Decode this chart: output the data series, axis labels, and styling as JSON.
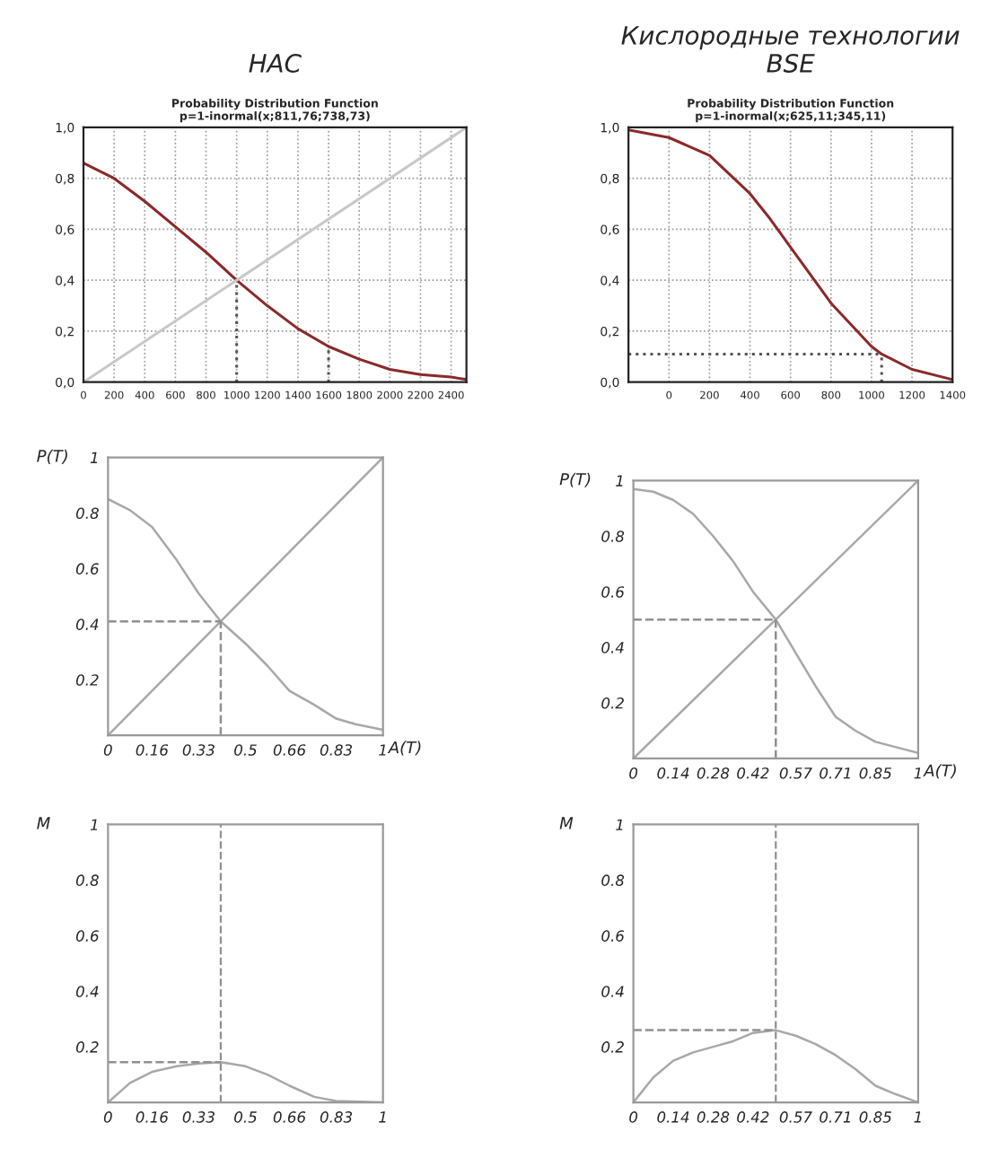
{
  "chart_data": [
    {
      "type": "line",
      "title": "HAC",
      "subtitle": "Probability Distribution Function\np=1-inormal(x;811,76;738,73)",
      "xlim": [
        0,
        2500
      ],
      "ylim": [
        0,
        1
      ],
      "xticks": [
        0,
        200,
        400,
        600,
        800,
        1000,
        1200,
        1400,
        1600,
        1800,
        2000,
        2200,
        2400
      ],
      "yticks": [
        {
          "value": 0,
          "label": "0,0"
        },
        {
          "value": 0.2,
          "label": "0,2"
        },
        {
          "value": 0.4,
          "label": "0,4"
        },
        {
          "value": 0.6,
          "label": "0,6"
        },
        {
          "value": 0.8,
          "label": "0,8"
        },
        {
          "value": 1,
          "label": "1,0"
        }
      ],
      "grid": true,
      "series": [
        {
          "color": "#8b2a2a",
          "line_style": "solid",
          "x": [
            0,
            200,
            400,
            600,
            800,
            1000,
            1200,
            1400,
            1600,
            1800,
            2000,
            2200,
            2400,
            2500
          ],
          "values": [
            0.86,
            0.8,
            0.71,
            0.61,
            0.51,
            0.4,
            0.3,
            0.21,
            0.14,
            0.09,
            0.05,
            0.03,
            0.02,
            0.01
          ]
        },
        {
          "color": "#c8c8c8",
          "line_style": "solid",
          "x": [
            0,
            2500
          ],
          "values": [
            0,
            1
          ]
        },
        {
          "color": "#555555",
          "line_style": "dotted",
          "x": [
            1000,
            1000
          ],
          "values": [
            0,
            0.4
          ]
        },
        {
          "color": "#555555",
          "line_style": "dotted",
          "x": [
            1600,
            1600
          ],
          "values": [
            0,
            0.14
          ]
        }
      ]
    },
    {
      "type": "line",
      "title": "Кислородные технологии\nBSE",
      "subtitle": "Probability Distribution Function\np=1-inormal(x;625,11;345,11)",
      "xlim": [
        -200,
        1400
      ],
      "ylim": [
        0,
        1
      ],
      "xticks": [
        0,
        200,
        400,
        600,
        800,
        1000,
        1200,
        1400
      ],
      "yticks": [
        {
          "value": 0,
          "label": "0,0"
        },
        {
          "value": 0.2,
          "label": "0,2"
        },
        {
          "value": 0.4,
          "label": "0,4"
        },
        {
          "value": 0.6,
          "label": "0,6"
        },
        {
          "value": 0.8,
          "label": "0,8"
        },
        {
          "value": 1,
          "label": "1,0"
        }
      ],
      "grid": true,
      "series": [
        {
          "color": "#8b2a2a",
          "line_style": "solid",
          "x": [
            -200,
            0,
            200,
            400,
            500,
            600,
            800,
            1000,
            1050,
            1200,
            1400
          ],
          "values": [
            0.99,
            0.96,
            0.89,
            0.74,
            0.64,
            0.53,
            0.31,
            0.14,
            0.11,
            0.05,
            0.01
          ]
        },
        {
          "color": "#555555",
          "line_style": "dotted",
          "x": [
            -200,
            1050
          ],
          "values": [
            0.11,
            0.11
          ]
        },
        {
          "color": "#555555",
          "line_style": "dotted",
          "x": [
            1050,
            1050
          ],
          "values": [
            0,
            0.11
          ]
        }
      ]
    },
    {
      "type": "line",
      "xlabel": "A(T)",
      "ylabel": "P(T)",
      "xlim": [
        0,
        1
      ],
      "ylim": [
        0,
        1
      ],
      "xticks": [
        0,
        0.16,
        0.33,
        0.5,
        0.66,
        0.83,
        1
      ],
      "yticks": [
        0.2,
        0.4,
        0.6,
        0.8,
        1
      ],
      "series": [
        {
          "color": "#a8a8a8",
          "line_style": "solid",
          "x": [
            0,
            0.08,
            0.16,
            0.25,
            0.33,
            0.41,
            0.5,
            0.58,
            0.66,
            0.75,
            0.83,
            0.9,
            1
          ],
          "values": [
            0.85,
            0.81,
            0.75,
            0.63,
            0.51,
            0.41,
            0.33,
            0.25,
            0.16,
            0.11,
            0.06,
            0.04,
            0.02
          ]
        },
        {
          "color": "#a8a8a8",
          "line_style": "solid",
          "x": [
            0,
            1
          ],
          "values": [
            0,
            1
          ]
        },
        {
          "color": "#909090",
          "line_style": "dashed",
          "x": [
            0,
            0.41
          ],
          "values": [
            0.41,
            0.41
          ]
        },
        {
          "color": "#909090",
          "line_style": "dashed",
          "x": [
            0.41,
            0.41
          ],
          "values": [
            0,
            0.41
          ]
        }
      ]
    },
    {
      "type": "line",
      "xlabel": "A(T)",
      "ylabel": "P(T)",
      "xlim": [
        0,
        1
      ],
      "ylim": [
        0,
        1
      ],
      "xticks": [
        0,
        0.14,
        0.28,
        0.42,
        0.57,
        0.71,
        0.85,
        1
      ],
      "yticks": [
        0.2,
        0.4,
        0.6,
        0.8,
        1
      ],
      "series": [
        {
          "color": "#a8a8a8",
          "line_style": "solid",
          "x": [
            0,
            0.07,
            0.14,
            0.21,
            0.28,
            0.35,
            0.42,
            0.5,
            0.57,
            0.64,
            0.71,
            0.78,
            0.85,
            1
          ],
          "values": [
            0.97,
            0.96,
            0.93,
            0.88,
            0.8,
            0.71,
            0.6,
            0.5,
            0.38,
            0.26,
            0.15,
            0.1,
            0.06,
            0.02
          ]
        },
        {
          "color": "#a8a8a8",
          "line_style": "solid",
          "x": [
            0,
            1
          ],
          "values": [
            0,
            1
          ]
        },
        {
          "color": "#909090",
          "line_style": "dashed",
          "x": [
            0,
            0.5
          ],
          "values": [
            0.5,
            0.5
          ]
        },
        {
          "color": "#909090",
          "line_style": "dashed",
          "x": [
            0.5,
            0.5
          ],
          "values": [
            0,
            0.5
          ]
        }
      ]
    },
    {
      "type": "line",
      "ylabel": "M",
      "xlim": [
        0,
        1
      ],
      "ylim": [
        0,
        1
      ],
      "xticks": [
        0,
        0.16,
        0.33,
        0.5,
        0.66,
        0.83,
        1
      ],
      "yticks": [
        0.2,
        0.4,
        0.6,
        0.8,
        1
      ],
      "ref_lines": [
        {
          "axis": "x",
          "value": 0.41,
          "color": "#909090",
          "line_style": "dashed"
        }
      ],
      "series": [
        {
          "color": "#a8a8a8",
          "line_style": "solid",
          "x": [
            0,
            0.08,
            0.16,
            0.25,
            0.33,
            0.41,
            0.5,
            0.58,
            0.66,
            0.75,
            0.83,
            1
          ],
          "values": [
            0,
            0.07,
            0.11,
            0.13,
            0.14,
            0.145,
            0.13,
            0.1,
            0.06,
            0.02,
            0.005,
            0
          ]
        },
        {
          "color": "#909090",
          "line_style": "dashed",
          "x": [
            0,
            0.41
          ],
          "values": [
            0.145,
            0.145
          ]
        }
      ]
    },
    {
      "type": "line",
      "ylabel": "M",
      "xlim": [
        0,
        1
      ],
      "ylim": [
        0,
        1
      ],
      "xticks": [
        0,
        0.14,
        0.28,
        0.42,
        0.57,
        0.71,
        0.85,
        1
      ],
      "yticks": [
        0.2,
        0.4,
        0.6,
        0.8,
        1
      ],
      "ref_lines": [
        {
          "axis": "x",
          "value": 0.5,
          "color": "#909090",
          "line_style": "dashed"
        }
      ],
      "series": [
        {
          "color": "#a8a8a8",
          "line_style": "solid",
          "x": [
            0,
            0.07,
            0.14,
            0.21,
            0.28,
            0.35,
            0.42,
            0.5,
            0.57,
            0.64,
            0.71,
            0.78,
            0.85,
            0.92,
            1
          ],
          "values": [
            0,
            0.09,
            0.15,
            0.18,
            0.2,
            0.22,
            0.25,
            0.26,
            0.24,
            0.21,
            0.17,
            0.12,
            0.06,
            0.03,
            0
          ]
        },
        {
          "color": "#909090",
          "line_style": "dashed",
          "x": [
            0,
            0.5
          ],
          "values": [
            0.26,
            0.26
          ]
        }
      ]
    }
  ]
}
